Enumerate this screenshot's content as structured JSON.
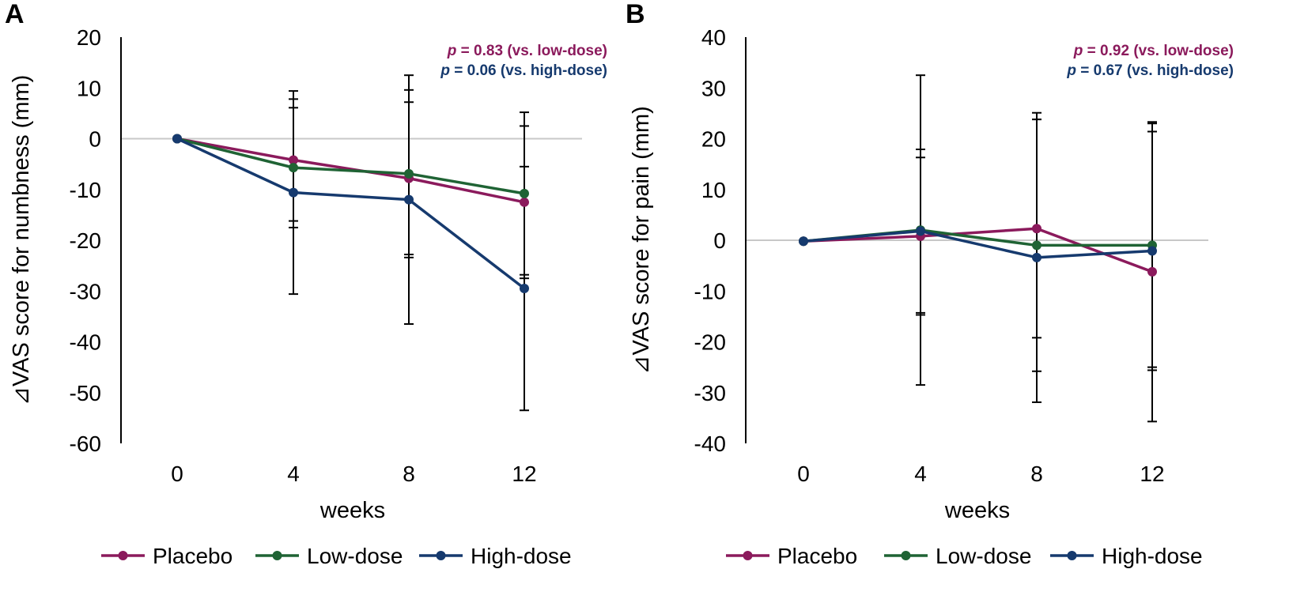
{
  "colors": {
    "placebo": "#8B1A5C",
    "low_dose": "#1F6334",
    "high_dose": "#163A6E",
    "axis": "#000000",
    "zero_line": "#C8C8C8",
    "error_bar": "#000000"
  },
  "chart_data": [
    {
      "type": "line",
      "panel_label": "A",
      "title": "",
      "xlabel": "weeks",
      "ylabel": "⊿VAS score for numbness (mm)",
      "categories": [
        "0",
        "4",
        "8",
        "12"
      ],
      "ylim": [
        -60,
        20
      ],
      "yticks": [
        20,
        10,
        0,
        -10,
        -20,
        -30,
        -40,
        -50,
        -60
      ],
      "ytick_labels": [
        "20",
        "10",
        "0",
        "-10",
        "-20",
        "-30",
        "-40",
        "-50",
        "-60"
      ],
      "grid": false,
      "zero_line": true,
      "series": [
        {
          "name": "Placebo",
          "color_key": "placebo",
          "values": [
            0,
            -4.2,
            -7.8,
            -12.5
          ],
          "error": [
            0,
            12.0,
            15.0,
            15.0
          ]
        },
        {
          "name": "Low-dose",
          "color_key": "low_dose",
          "values": [
            0,
            -5.7,
            -6.9,
            -10.8
          ],
          "error": [
            0,
            11.8,
            16.5,
            16.0
          ]
        },
        {
          "name": "High-dose",
          "color_key": "high_dose",
          "values": [
            0,
            -10.6,
            -12.0,
            -29.5
          ],
          "error": [
            0,
            20.0,
            24.5,
            24.0
          ]
        }
      ],
      "annotations": [
        {
          "italic": "p",
          "text": " = 0.83 (vs. low-dose)",
          "color_key": "placebo"
        },
        {
          "italic": "p",
          "text": " = 0.06 (vs. high-dose)",
          "color_key": "high_dose"
        }
      ],
      "legend": [
        "Placebo",
        "Low-dose",
        "High-dose"
      ],
      "legend_position": "bottom"
    },
    {
      "type": "line",
      "panel_label": "B",
      "title": "",
      "xlabel": "weeks",
      "ylabel": "⊿VAS score for pain (mm)",
      "categories": [
        "0",
        "4",
        "8",
        "12"
      ],
      "ylim": [
        -40,
        40
      ],
      "yticks": [
        40,
        30,
        20,
        10,
        0,
        -10,
        -20,
        -30,
        -40
      ],
      "ytick_labels": [
        "40",
        "30",
        "20",
        "10",
        "0",
        "-10",
        "-20",
        "-30",
        "-40"
      ],
      "grid": false,
      "zero_line": true,
      "series": [
        {
          "name": "Placebo",
          "color_key": "placebo",
          "values": [
            -0.2,
            0.8,
            2.3,
            -6.2
          ],
          "error": [
            0,
            15.5,
            21.5,
            29.5
          ]
        },
        {
          "name": "Low-dose",
          "color_key": "low_dose",
          "values": [
            -0.2,
            2.0,
            -1.0,
            -1.0
          ],
          "error": [
            0,
            30.5,
            24.8,
            24.0
          ]
        },
        {
          "name": "High-dose",
          "color_key": "high_dose",
          "values": [
            -0.2,
            1.8,
            -3.4,
            -2.1
          ],
          "error": [
            0,
            16.1,
            28.5,
            23.5
          ]
        }
      ],
      "annotations": [
        {
          "italic": "p",
          "text": " = 0.92 (vs. low-dose)",
          "color_key": "placebo"
        },
        {
          "italic": "p",
          "text": " = 0.67 (vs. high-dose)",
          "color_key": "high_dose"
        }
      ],
      "legend": [
        "Placebo",
        "Low-dose",
        "High-dose"
      ],
      "legend_position": "bottom"
    }
  ]
}
